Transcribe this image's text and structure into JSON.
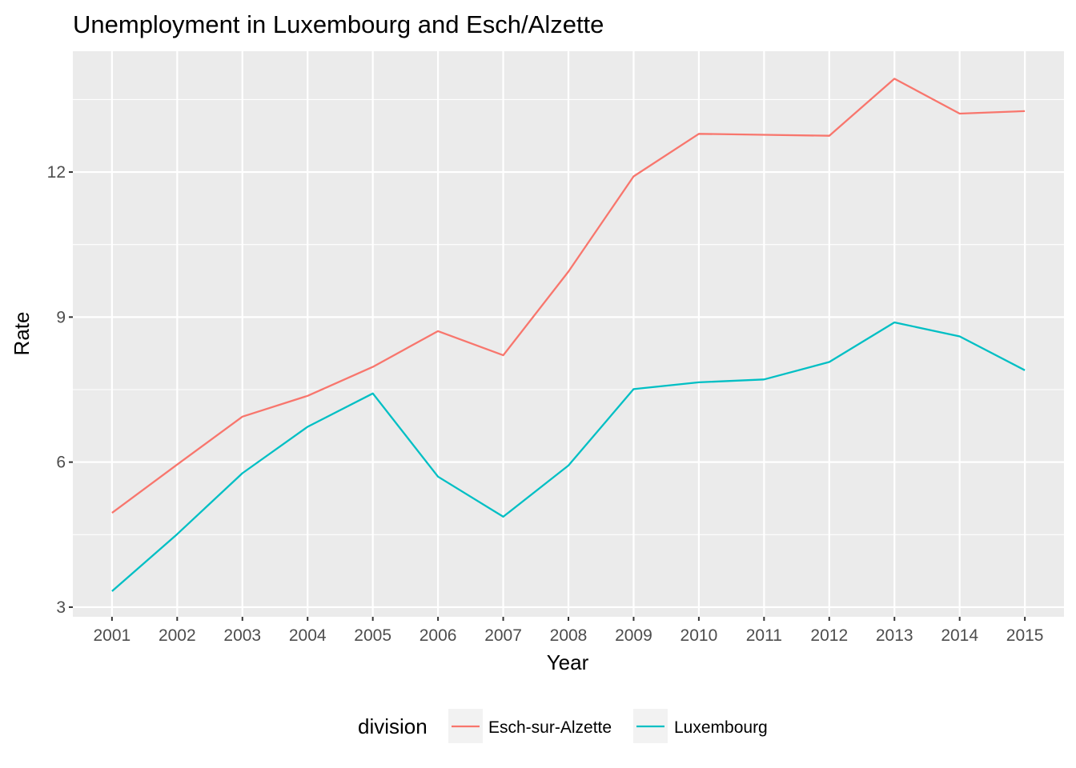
{
  "chart_data": {
    "type": "line",
    "title": "Unemployment in Luxembourg and Esch/Alzette",
    "xlabel": "Year",
    "ylabel": "Rate",
    "x": [
      "2001",
      "2002",
      "2003",
      "2004",
      "2005",
      "2006",
      "2007",
      "2008",
      "2009",
      "2010",
      "2011",
      "2012",
      "2013",
      "2014",
      "2015"
    ],
    "xlim": [
      2000.4,
      2015.6
    ],
    "ylim": [
      2.8,
      14.5
    ],
    "yticks": [
      3,
      6,
      9,
      12
    ],
    "grid": true,
    "legend": {
      "title": "division",
      "position": "bottom"
    },
    "series": [
      {
        "name": "Esch-sur-Alzette",
        "color": "#F8766D",
        "values": [
          4.95,
          5.95,
          6.94,
          7.37,
          7.97,
          8.71,
          8.21,
          9.94,
          11.91,
          12.79,
          12.77,
          12.75,
          13.93,
          13.21,
          13.26
        ]
      },
      {
        "name": "Luxembourg",
        "color": "#00BFC4",
        "values": [
          3.33,
          4.51,
          5.77,
          6.73,
          7.42,
          5.7,
          4.87,
          5.93,
          7.51,
          7.65,
          7.71,
          8.07,
          8.89,
          8.6,
          7.9
        ]
      }
    ]
  }
}
